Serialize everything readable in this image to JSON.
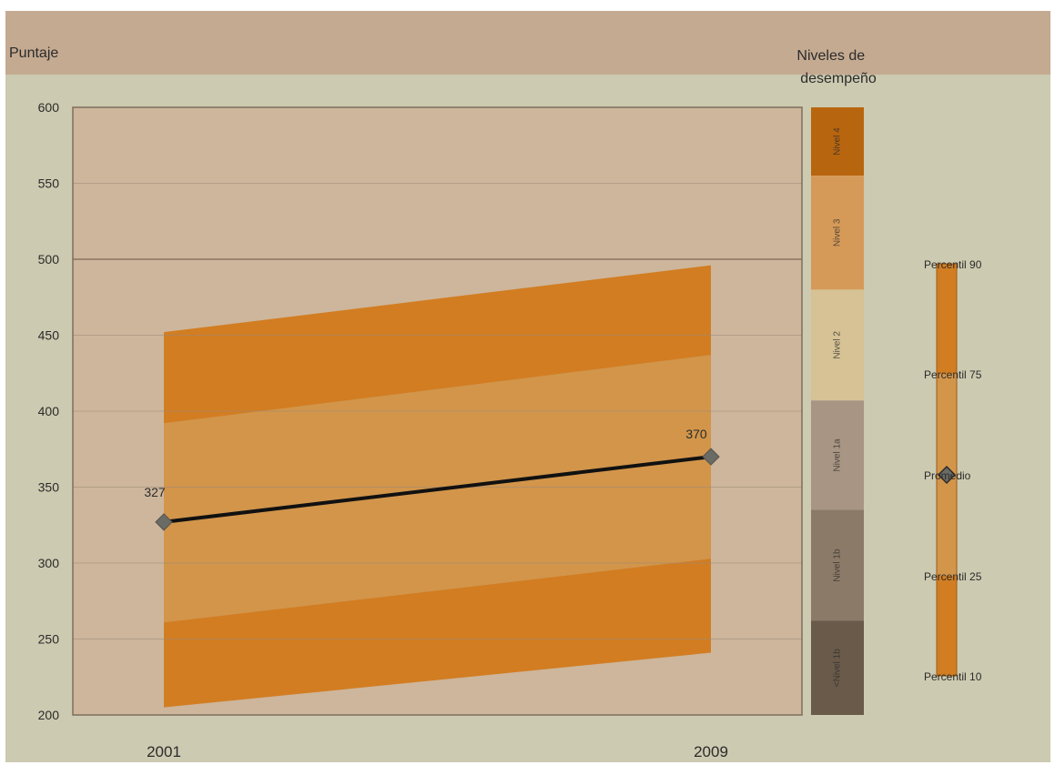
{
  "chart_data": [
    {
      "type": "area",
      "ylabel": "Puntaje",
      "ylim": [
        200,
        600
      ],
      "yticks": [
        600,
        550,
        500,
        450,
        400,
        350,
        300,
        250,
        200
      ],
      "x": [
        "2001",
        "2009"
      ],
      "series": [
        {
          "name": "Percentil 10",
          "values": [
            205,
            241
          ]
        },
        {
          "name": "Percentil 25",
          "values": [
            261,
            303
          ]
        },
        {
          "name": "Promedio",
          "values": [
            327,
            370
          ]
        },
        {
          "name": "Percentil 75",
          "values": [
            392,
            437
          ]
        },
        {
          "name": "Percentil 90",
          "values": [
            452,
            496
          ]
        }
      ],
      "data_labels": [
        "327",
        "370"
      ],
      "grid": true,
      "colors": {
        "outer_band": "#d27d22",
        "inner_band": "#d2954a",
        "mean_line": "#111111",
        "marker": "#6b6b66",
        "plot_bg": "#cdb69b",
        "frame_bg": "#cccab0",
        "header_bg": "#c4aa91"
      }
    },
    {
      "type": "bar",
      "title": "Niveles de desempeño",
      "categories": [
        "Nivel 4",
        "Nivel 3",
        "Nivel 2",
        "Nivel 1a",
        "Nivel 1b",
        "<Nivel 1b"
      ],
      "ranges": [
        [
          555,
          600
        ],
        [
          480,
          555
        ],
        [
          407,
          480
        ],
        [
          335,
          407
        ],
        [
          262,
          335
        ],
        [
          200,
          262
        ]
      ],
      "colors": [
        "#b8650f",
        "#d69a58",
        "#d6c294",
        "#a89583",
        "#8c7a68",
        "#6a5a4a"
      ]
    }
  ],
  "legend": {
    "items": [
      "Percentil 90",
      "Percentil 75",
      "Promedio",
      "Percentil 25",
      "Percentil 10"
    ]
  }
}
